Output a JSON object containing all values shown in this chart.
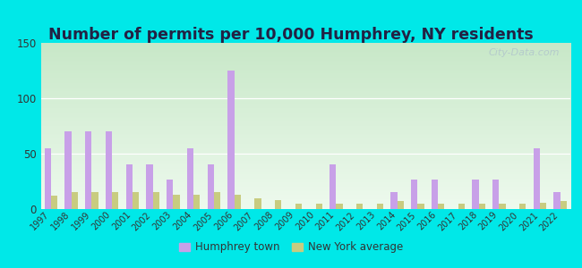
{
  "title": "Number of permits per 10,000 Humphrey, NY residents",
  "years": [
    1997,
    1998,
    1999,
    2000,
    2001,
    2002,
    2003,
    2004,
    2005,
    2006,
    2007,
    2008,
    2009,
    2010,
    2011,
    2012,
    2013,
    2014,
    2015,
    2016,
    2017,
    2018,
    2019,
    2020,
    2021,
    2022
  ],
  "humphrey": [
    55,
    70,
    70,
    70,
    40,
    40,
    27,
    55,
    40,
    125,
    0,
    0,
    0,
    0,
    40,
    0,
    0,
    15,
    27,
    27,
    0,
    27,
    27,
    0,
    55,
    15
  ],
  "ny_avg": [
    12,
    15,
    15,
    15,
    15,
    15,
    13,
    13,
    15,
    13,
    10,
    8,
    5,
    5,
    5,
    5,
    5,
    7,
    5,
    5,
    5,
    5,
    5,
    5,
    6,
    7
  ],
  "humphrey_color": "#c8a0e8",
  "ny_avg_color": "#c8cc80",
  "bg_outer": "#00e8e8",
  "bg_plot_top": "#c8e8c8",
  "bg_plot_bottom": "#eefaee",
  "ylim": [
    0,
    150
  ],
  "yticks": [
    0,
    50,
    100,
    150
  ],
  "bar_width": 0.32,
  "legend_humphrey": "Humphrey town",
  "legend_ny": "New York average",
  "title_fontsize": 12.5,
  "title_color": "#222244",
  "watermark": "City-Data.com",
  "grid_color": "#ffffff",
  "tick_color": "#333333"
}
